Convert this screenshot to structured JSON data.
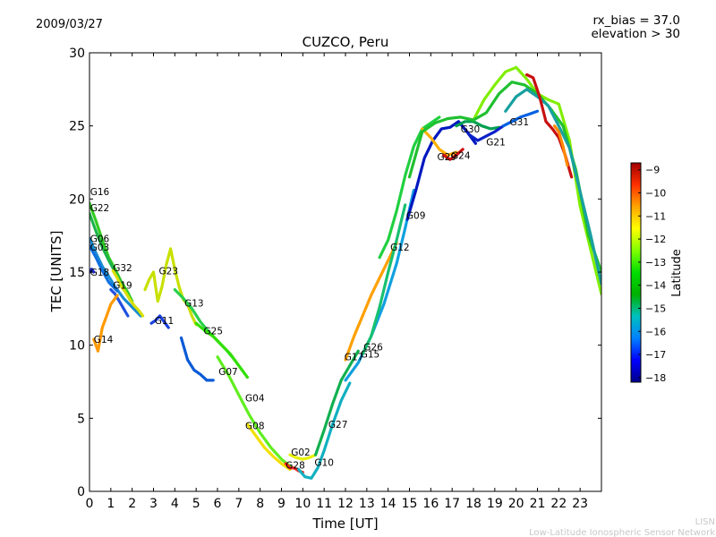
{
  "header": {
    "date": "2009/03/27",
    "title": "CUZCO, Peru",
    "bias_text": "rx_bias = 37.0",
    "elevation_text": "elevation > 30"
  },
  "footer": {
    "line1": "LISN",
    "line2": "Low-Latitude Ionospheric Sensor Network"
  },
  "chart_data": {
    "type": "scatter",
    "title": "CUZCO, Peru",
    "xlabel": "Time [UT]",
    "ylabel": "TEC [UNITS]",
    "xlim": [
      0,
      24
    ],
    "ylim": [
      0,
      30
    ],
    "xticks": [
      0,
      1,
      2,
      3,
      4,
      5,
      6,
      7,
      8,
      9,
      10,
      11,
      12,
      13,
      14,
      15,
      16,
      17,
      18,
      19,
      20,
      21,
      22,
      23
    ],
    "yticks": [
      0,
      5,
      10,
      15,
      20,
      25,
      30
    ],
    "colorbar": {
      "label": "Latitude",
      "range": [
        -18.2,
        -8.7
      ],
      "ticks": [
        -9,
        -10,
        -11,
        -12,
        -13,
        -14,
        -15,
        -16,
        -17,
        -18
      ],
      "colors": [
        "#00008b",
        "#0000ff",
        "#0080ff",
        "#00c0c0",
        "#00b000",
        "#00dd00",
        "#80ff00",
        "#ffff00",
        "#ffa500",
        "#ff3000",
        "#a00000"
      ]
    },
    "series": [
      {
        "name": "G16",
        "color": "#33cc22",
        "x": [
          0,
          0.3,
          0.6,
          0.9,
          1.2,
          1.5,
          1.8,
          2.0
        ],
        "y": [
          19.7,
          18.5,
          17.2,
          16.0,
          15.2,
          14.3,
          13.6,
          13.0
        ]
      },
      {
        "name": "G22",
        "color": "#1db34a",
        "x": [
          0,
          0.3,
          0.6,
          0.9,
          1.2,
          1.5
        ],
        "y": [
          19.0,
          17.8,
          16.7,
          15.8,
          15.0,
          14.2
        ]
      },
      {
        "name": "G06",
        "color": "#1a8cd0",
        "x": [
          0,
          0.3,
          0.6,
          0.9,
          1.2,
          1.6,
          2.0,
          2.4
        ],
        "y": [
          17.3,
          16.3,
          15.4,
          14.7,
          14.0,
          13.2,
          12.6,
          12.0
        ]
      },
      {
        "name": "G03",
        "color": "#1070e0",
        "x": [
          0,
          0.3,
          0.6,
          0.9,
          1.3
        ],
        "y": [
          16.8,
          16.0,
          15.1,
          14.3,
          13.7
        ]
      },
      {
        "name": "G18",
        "color": "#1a30e0",
        "x": [
          0,
          0.1,
          0.2
        ],
        "y": [
          15.0,
          15.2,
          15.0
        ]
      },
      {
        "name": "G32",
        "color": "#d7e000",
        "x": [
          1.1,
          1.3,
          1.5,
          1.7,
          1.9,
          2.1,
          2.3,
          2.5
        ],
        "y": [
          15.1,
          14.6,
          14.0,
          13.6,
          13.1,
          12.7,
          12.4,
          12.0
        ]
      },
      {
        "name": "G19",
        "color": "#2050e0",
        "x": [
          1.0,
          1.2,
          1.4,
          1.6,
          1.8
        ],
        "y": [
          13.8,
          13.5,
          13.0,
          12.5,
          12.0
        ]
      },
      {
        "name": "G14",
        "color": "#ff9900",
        "x": [
          0.2,
          0.3,
          0.4,
          0.5,
          0.6,
          0.8,
          1.0,
          1.3
        ],
        "y": [
          10.4,
          10.0,
          9.6,
          10.4,
          11.2,
          12.0,
          12.8,
          13.4
        ]
      },
      {
        "name": "G23",
        "color": "#c8e000",
        "x": [
          2.6,
          2.8,
          3.0,
          3.2,
          3.4,
          3.6,
          3.8,
          4.0,
          4.2,
          4.4,
          4.6,
          4.8,
          5.0
        ],
        "y": [
          13.8,
          14.5,
          15.0,
          13.0,
          14.0,
          15.5,
          16.6,
          15.2,
          14.0,
          13.1,
          12.8,
          12.0,
          11.4
        ]
      },
      {
        "name": "G11",
        "color": "#1a40e0",
        "x": [
          2.9,
          3.1,
          3.3,
          3.5,
          3.7
        ],
        "y": [
          11.5,
          11.7,
          12.0,
          11.6,
          11.2
        ]
      },
      {
        "name": "G13",
        "color": "#2ad04a",
        "x": [
          4.0,
          4.4,
          4.8,
          5.2,
          5.6,
          6.0,
          6.4,
          6.8
        ],
        "y": [
          13.8,
          13.2,
          12.5,
          11.6,
          10.9,
          10.3,
          9.7,
          9.0
        ]
      },
      {
        "name": "G25",
        "color": "#30e000",
        "x": [
          5.0,
          5.4,
          5.8,
          6.2,
          6.6,
          7.0,
          7.4
        ],
        "y": [
          11.5,
          11.0,
          10.6,
          10.0,
          9.4,
          8.6,
          7.8
        ]
      },
      {
        "name": "G07",
        "color": "#0a5ad6",
        "x": [
          4.3,
          4.6,
          4.9,
          5.2,
          5.5,
          5.8
        ],
        "y": [
          10.5,
          9.0,
          8.3,
          8.0,
          7.6,
          7.6
        ]
      },
      {
        "name": "G04",
        "color": "#60ee20",
        "x": [
          6.0,
          6.5,
          7.0,
          7.5,
          8.0,
          8.5,
          9.0,
          9.5
        ],
        "y": [
          9.2,
          8.0,
          6.6,
          5.2,
          4.0,
          3.0,
          2.2,
          1.6
        ]
      },
      {
        "name": "G08",
        "color": "#f0e000",
        "x": [
          7.4,
          7.8,
          8.2,
          8.6,
          9.0,
          9.4
        ],
        "y": [
          4.6,
          3.8,
          3.0,
          2.4,
          1.9,
          1.5
        ]
      },
      {
        "name": "G28",
        "color": "#ff2020",
        "x": [
          9.2,
          9.4,
          9.6,
          9.8,
          10.0
        ],
        "y": [
          1.9,
          1.6,
          1.6,
          1.4,
          1.3
        ]
      },
      {
        "name": "G02",
        "color": "#e6f000",
        "x": [
          9.4,
          9.7,
          10.0,
          10.3,
          10.6
        ],
        "y": [
          2.5,
          2.3,
          2.2,
          2.3,
          2.5
        ]
      },
      {
        "name": "G10",
        "color": "#10b0c0",
        "x": [
          9.8,
          10.1,
          10.4,
          10.7,
          11.0,
          11.4,
          11.8,
          12.2
        ],
        "y": [
          1.5,
          1.0,
          0.9,
          1.6,
          2.8,
          4.6,
          6.2,
          7.4
        ]
      },
      {
        "name": "G27",
        "color": "#10b050",
        "x": [
          10.6,
          11.0,
          11.4,
          11.8,
          12.2,
          12.6
        ],
        "y": [
          2.5,
          4.2,
          6.0,
          7.6,
          8.6,
          9.6
        ]
      },
      {
        "name": "G17",
        "color": "#ffa000",
        "x": [
          12.0,
          12.4,
          12.8,
          13.2,
          13.6,
          14.0,
          14.4
        ],
        "y": [
          9.0,
          10.6,
          12.0,
          13.4,
          14.6,
          15.8,
          17.0
        ]
      },
      {
        "name": "G15",
        "color": "#10a0e0",
        "x": [
          12.0,
          12.6,
          13.2,
          13.8,
          14.4,
          14.8,
          15.2
        ],
        "y": [
          7.6,
          8.8,
          10.6,
          12.8,
          15.6,
          18.0,
          20.6
        ]
      },
      {
        "name": "G26",
        "color": "#18c070",
        "x": [
          12.8,
          13.2,
          13.6,
          14.0,
          14.4,
          14.8
        ],
        "y": [
          9.4,
          10.6,
          12.6,
          15.0,
          17.2,
          19.6
        ]
      },
      {
        "name": "G12",
        "color": "#20d040",
        "x": [
          13.6,
          14.0,
          14.4,
          14.8,
          15.2,
          15.6,
          16.0,
          16.4
        ],
        "y": [
          16.0,
          17.2,
          19.2,
          21.6,
          23.6,
          24.8,
          25.2,
          25.6
        ]
      },
      {
        "name": "G09",
        "color": "#0018c0",
        "x": [
          14.9,
          15.3,
          15.7,
          16.1,
          16.5,
          16.9,
          17.3,
          17.7,
          18.1
        ],
        "y": [
          18.6,
          20.6,
          22.8,
          24.0,
          24.8,
          24.9,
          25.3,
          24.6,
          23.8
        ]
      },
      {
        "name": "G29",
        "color": "#ffb000",
        "x": [
          15.6,
          16.0,
          16.4,
          16.8,
          17.2
        ],
        "y": [
          24.8,
          24.2,
          23.4,
          23.0,
          23.2
        ]
      },
      {
        "name": "G24",
        "color": "#d01010",
        "x": [
          16.6,
          16.9,
          17.2,
          17.5
        ],
        "y": [
          23.0,
          22.7,
          23.0,
          23.4
        ]
      },
      {
        "name": "G30",
        "color": "#00a050",
        "x": [
          17.2,
          17.6,
          18.0,
          18.4,
          18.8,
          19.2
        ],
        "y": [
          25.0,
          25.3,
          25.3,
          25.0,
          24.8,
          24.9
        ]
      },
      {
        "name": "G21",
        "color": "#0a20c8",
        "x": [
          17.8,
          18.2,
          18.6,
          19.0,
          19.4
        ],
        "y": [
          24.4,
          24.0,
          24.3,
          24.6,
          25.0
        ]
      },
      {
        "name": "G31",
        "color": "#0060e0",
        "x": [
          19.4,
          19.8,
          20.2,
          20.6,
          21.0
        ],
        "y": [
          25.0,
          25.3,
          25.6,
          25.8,
          26.0
        ]
      },
      {
        "name": "",
        "color": "#80ee00",
        "x": [
          18.0,
          18.5,
          19.0,
          19.5,
          20.0,
          20.5,
          21.0,
          21.5,
          22.0,
          22.5,
          23.0,
          23.5,
          24.0
        ],
        "y": [
          25.4,
          26.8,
          27.8,
          28.7,
          29.0,
          28.2,
          27.2,
          26.8,
          26.5,
          24.0,
          19.5,
          16.5,
          13.5
        ]
      },
      {
        "name": "",
        "color": "#20c030",
        "x": [
          15.0,
          15.6,
          16.2,
          16.8,
          17.4,
          18.0,
          18.6,
          19.2,
          19.8,
          20.4,
          21.0,
          21.6,
          22.2,
          22.8,
          23.4,
          24.0
        ],
        "y": [
          21.5,
          24.6,
          25.2,
          25.5,
          25.6,
          25.4,
          25.9,
          27.2,
          28.0,
          27.8,
          27.2,
          26.2,
          25.0,
          22.0,
          17.5,
          15.0
        ]
      },
      {
        "name": "",
        "color": "#18a0a0",
        "x": [
          19.5,
          20.0,
          20.5,
          21.0,
          21.5,
          22.0,
          22.5,
          23.0,
          23.5,
          24.0
        ],
        "y": [
          26.0,
          27.0,
          27.5,
          27.0,
          26.4,
          25.0,
          23.5,
          20.5,
          17.5,
          14.2
        ]
      },
      {
        "name": "",
        "color": "#c81010",
        "x": [
          20.5,
          20.8,
          21.1,
          21.4,
          21.7,
          22.0,
          22.3,
          22.6
        ],
        "y": [
          28.5,
          28.3,
          27.0,
          25.3,
          24.8,
          24.2,
          23.0,
          21.5
        ]
      },
      {
        "name": "",
        "color": "#ff8800",
        "x": [
          21.8,
          22.0,
          22.2,
          22.4
        ],
        "y": [
          25.0,
          24.6,
          23.6,
          22.3
        ]
      }
    ],
    "label_points": [
      {
        "text": "G16",
        "x": 0.03,
        "y": 20.5
      },
      {
        "text": "G22",
        "x": 0.03,
        "y": 19.4
      },
      {
        "text": "G06",
        "x": 0.03,
        "y": 17.3
      },
      {
        "text": "G03",
        "x": 0.03,
        "y": 16.7
      },
      {
        "text": "G18",
        "x": 0.03,
        "y": 15.0
      },
      {
        "text": "G32",
        "x": 1.1,
        "y": 15.3
      },
      {
        "text": "G19",
        "x": 1.1,
        "y": 14.1
      },
      {
        "text": "G14",
        "x": 0.2,
        "y": 10.4
      },
      {
        "text": "G23",
        "x": 3.25,
        "y": 15.1
      },
      {
        "text": "G11",
        "x": 3.05,
        "y": 11.7
      },
      {
        "text": "G13",
        "x": 4.45,
        "y": 12.9
      },
      {
        "text": "G25",
        "x": 5.35,
        "y": 11.0
      },
      {
        "text": "G07",
        "x": 6.05,
        "y": 8.2
      },
      {
        "text": "G04",
        "x": 7.3,
        "y": 6.4
      },
      {
        "text": "G08",
        "x": 7.3,
        "y": 4.5
      },
      {
        "text": "G02",
        "x": 9.45,
        "y": 2.7
      },
      {
        "text": "G28",
        "x": 9.2,
        "y": 1.8
      },
      {
        "text": "G10",
        "x": 10.55,
        "y": 2.0
      },
      {
        "text": "G27",
        "x": 11.2,
        "y": 4.6
      },
      {
        "text": "G17",
        "x": 11.95,
        "y": 9.2
      },
      {
        "text": "G15",
        "x": 12.7,
        "y": 9.4
      },
      {
        "text": "G26",
        "x": 12.85,
        "y": 9.9
      },
      {
        "text": "G12",
        "x": 14.1,
        "y": 16.7
      },
      {
        "text": "G09",
        "x": 14.85,
        "y": 18.9
      },
      {
        "text": "G29",
        "x": 16.3,
        "y": 22.9
      },
      {
        "text": "G24",
        "x": 16.95,
        "y": 23.0
      },
      {
        "text": "G30",
        "x": 17.4,
        "y": 24.8
      },
      {
        "text": "G21",
        "x": 18.6,
        "y": 23.9
      },
      {
        "text": "G31",
        "x": 19.7,
        "y": 25.3
      }
    ]
  }
}
